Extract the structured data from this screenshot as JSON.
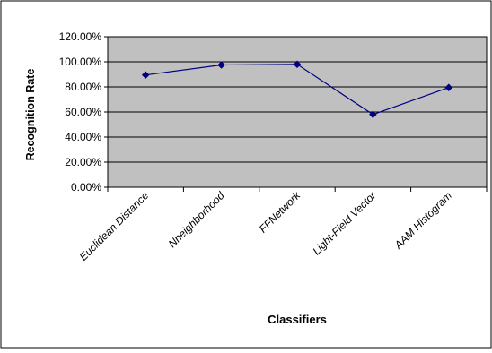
{
  "chart_data": {
    "type": "line",
    "title": "",
    "xlabel": "Classifiers",
    "ylabel": "Recognition Rate",
    "categories": [
      "Euclidean Distance",
      "Nneighborhood",
      "FFNetwork",
      "Light-Field Vector",
      "AAM Histogram"
    ],
    "series": [
      {
        "values": [
          89.5,
          97.5,
          98.0,
          58.0,
          79.5
        ]
      }
    ],
    "ylim": [
      0,
      120
    ],
    "yticks": [
      0,
      20,
      40,
      60,
      80,
      100,
      120
    ],
    "ytick_labels": [
      "0.00%",
      "20.00%",
      "40.00%",
      "60.00%",
      "80.00%",
      "100.00%",
      "120.00%"
    ],
    "grid": true,
    "legend": "none",
    "colors": {
      "plot_background": "#c0c0c0",
      "line": "#000080",
      "marker": "#000080",
      "gridline": "#000000",
      "frame": "#000000"
    }
  }
}
